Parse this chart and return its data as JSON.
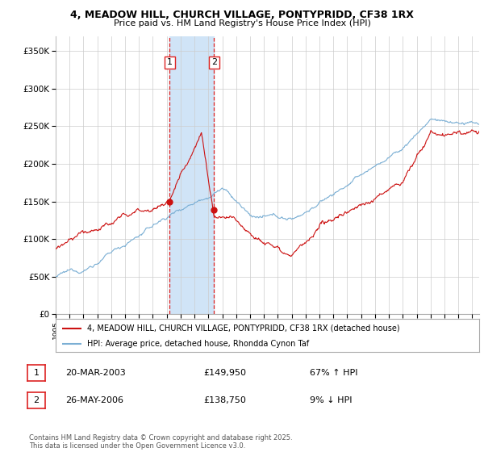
{
  "title_line1": "4, MEADOW HILL, CHURCH VILLAGE, PONTYPRIDD, CF38 1RX",
  "title_line2": "Price paid vs. HM Land Registry's House Price Index (HPI)",
  "ylabel_ticks": [
    "£0",
    "£50K",
    "£100K",
    "£150K",
    "£200K",
    "£250K",
    "£300K",
    "£350K"
  ],
  "ytick_values": [
    0,
    50000,
    100000,
    150000,
    200000,
    250000,
    300000,
    350000
  ],
  "ylim": [
    0,
    370000
  ],
  "xlim_start": 1995.0,
  "xlim_end": 2025.5,
  "transaction1": {
    "date": "20-MAR-2003",
    "price": 149950,
    "label": "1",
    "year": 2003.22
  },
  "transaction2": {
    "date": "26-MAY-2006",
    "price": 138750,
    "label": "2",
    "year": 2006.4
  },
  "shade_color": "#d0e4f7",
  "vline_color": "#dd2222",
  "red_line_color": "#cc1111",
  "blue_line_color": "#7bafd4",
  "grid_color": "#cccccc",
  "background_color": "#ffffff",
  "legend_line1": "4, MEADOW HILL, CHURCH VILLAGE, PONTYPRIDD, CF38 1RX (detached house)",
  "legend_line2": "HPI: Average price, detached house, Rhondda Cynon Taf",
  "footer_text": "Contains HM Land Registry data © Crown copyright and database right 2025.\nThis data is licensed under the Open Government Licence v3.0.",
  "table_row1": [
    "1",
    "20-MAR-2003",
    "£149,950",
    "67% ↑ HPI"
  ],
  "table_row2": [
    "2",
    "26-MAY-2006",
    "£138,750",
    "9% ↓ HPI"
  ]
}
